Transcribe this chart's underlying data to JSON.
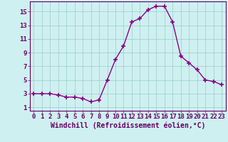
{
  "x": [
    0,
    1,
    2,
    3,
    4,
    5,
    6,
    7,
    8,
    9,
    10,
    11,
    12,
    13,
    14,
    15,
    16,
    17,
    18,
    19,
    20,
    21,
    22,
    23
  ],
  "y": [
    3.0,
    3.0,
    3.0,
    2.8,
    2.5,
    2.5,
    2.3,
    1.8,
    2.1,
    5.0,
    8.0,
    10.0,
    13.5,
    14.0,
    15.3,
    15.8,
    15.8,
    13.5,
    8.5,
    7.5,
    6.5,
    5.0,
    4.8,
    4.3
  ],
  "line_color": "#880088",
  "marker": "+",
  "marker_size": 4,
  "marker_lw": 1.2,
  "bg_color": "#cff0f0",
  "grid_color": "#99cccc",
  "xlabel": "Windchill (Refroidissement éolien,°C)",
  "xlabel_color": "#660066",
  "tick_color": "#660066",
  "spine_color": "#660066",
  "ylim": [
    0.5,
    16.5
  ],
  "xlim": [
    -0.5,
    23.5
  ],
  "yticks": [
    1,
    3,
    5,
    7,
    9,
    11,
    13,
    15
  ],
  "xticks": [
    0,
    1,
    2,
    3,
    4,
    5,
    6,
    7,
    8,
    9,
    10,
    11,
    12,
    13,
    14,
    15,
    16,
    17,
    18,
    19,
    20,
    21,
    22,
    23
  ],
  "tick_fontsize": 6.5,
  "xlabel_fontsize": 7.0,
  "line_width": 1.0
}
